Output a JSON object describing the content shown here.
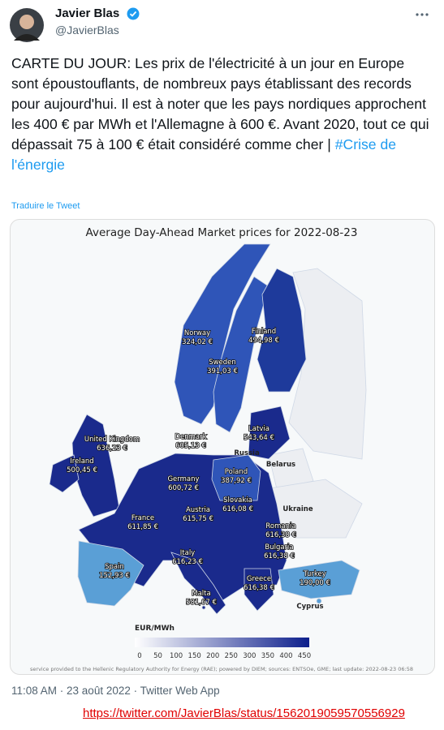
{
  "tweet": {
    "author": {
      "name": "Javier Blas",
      "handle": "@JavierBlas"
    },
    "text": "CARTE DU JOUR: Les prix de l'électricité à un jour en Europe sont époustouflants, de nombreux pays établissant des records pour aujourd'hui. Il est à noter que les pays nordiques approchent les 400 € par MWh et l'Allemagne à 600 €. Avant 2020, tout ce qui dépassait 75 à 100 € était considéré comme cher |",
    "hashtag": "#Crise de l'énergie",
    "translate": "Traduire le Tweet",
    "timestamp": "11:08 AM · 23 août 2022 · Twitter Web App",
    "url": "https://twitter.com/JavierBlas/status/1562019059570556929"
  },
  "map": {
    "title": "Average Day-Ahead Market prices for 2022-08-23",
    "labels": [
      {
        "country": "United Kingdom",
        "price": "636,23 €"
      },
      {
        "country": "Ireland",
        "price": "500,45 €"
      },
      {
        "country": "Norway",
        "price": "324,02 €"
      },
      {
        "country": "Finland",
        "price": "494,98 €"
      },
      {
        "country": "Sweden",
        "price": "391,03 €"
      },
      {
        "country": "Denmark",
        "price": "605,13 €"
      },
      {
        "country": "Latvia",
        "price": "543,64 €"
      },
      {
        "country": "Poland",
        "price": "387,92 €"
      },
      {
        "country": "Germany",
        "price": "600,72 €"
      },
      {
        "country": "Slovakia",
        "price": "616,08 €"
      },
      {
        "country": "Austria",
        "price": "615,75 €"
      },
      {
        "country": "France",
        "price": "611,85 €"
      },
      {
        "country": "Romania",
        "price": "616,38 €"
      },
      {
        "country": "Bulgaria",
        "price": "616,38 €"
      },
      {
        "country": "Italy",
        "price": "616,23 €"
      },
      {
        "country": "Spain",
        "price": "152,93 €"
      },
      {
        "country": "Turkey",
        "price": "190,00 €"
      },
      {
        "country": "Greece",
        "price": "616,38 €"
      },
      {
        "country": "Malta",
        "price": "581,67 €"
      }
    ],
    "other_labels": [
      "Russia",
      "Belarus",
      "Ukraine",
      "Cyprus"
    ],
    "legend": {
      "title": "EUR/MWh",
      "ticks": [
        "0",
        "50",
        "100",
        "150",
        "200",
        "250",
        "300",
        "350",
        "400",
        "450"
      ]
    },
    "credit": "service provided to the Hellenic Regulatory Authority for Energy (RAE); powered by DIEM; sources: ENTSOe, GME; last update: 2022-08-23 06:58"
  }
}
